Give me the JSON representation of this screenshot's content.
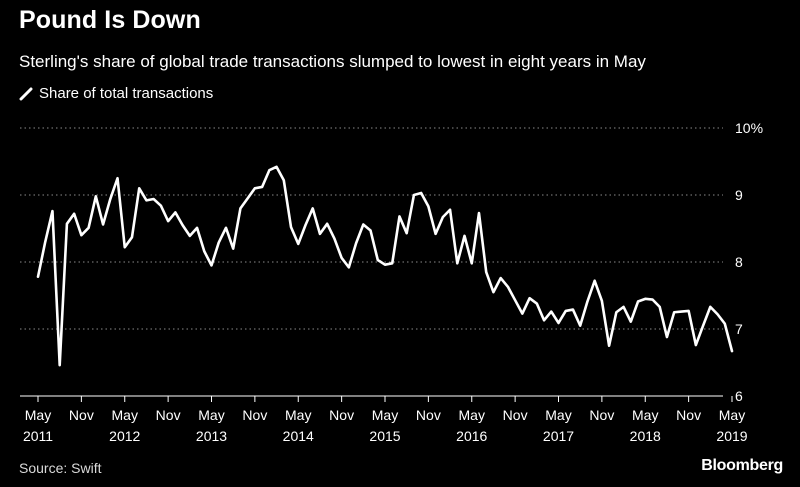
{
  "header": {
    "title": "Pound Is Down",
    "subtitle": "Sterling's share of global trade transactions slumped to lowest in eight years in May"
  },
  "legend": {
    "label": "Share of total transactions"
  },
  "footer": {
    "source": "Source: Swift",
    "brand": "Bloomberg"
  },
  "colors": {
    "background": "#000000",
    "line": "#ffffff",
    "grid": "#8a8a8a",
    "text": "#ffffff"
  },
  "chart_data": {
    "type": "line",
    "title": "Pound Is Down",
    "ylabel": "Share of total transactions",
    "ylim": [
      6,
      10
    ],
    "yticks": [
      6,
      7,
      8,
      9,
      10
    ],
    "ytick_labels": [
      "6",
      "7",
      "8",
      "9",
      "10%"
    ],
    "xticks": [
      {
        "index": 0,
        "month": "May",
        "year": "2011"
      },
      {
        "index": 6,
        "month": "Nov",
        "year": ""
      },
      {
        "index": 12,
        "month": "May",
        "year": "2012"
      },
      {
        "index": 18,
        "month": "Nov",
        "year": ""
      },
      {
        "index": 24,
        "month": "May",
        "year": "2013"
      },
      {
        "index": 30,
        "month": "Nov",
        "year": ""
      },
      {
        "index": 36,
        "month": "May",
        "year": "2014"
      },
      {
        "index": 42,
        "month": "Nov",
        "year": ""
      },
      {
        "index": 48,
        "month": "May",
        "year": "2015"
      },
      {
        "index": 54,
        "month": "Nov",
        "year": ""
      },
      {
        "index": 60,
        "month": "May",
        "year": "2016"
      },
      {
        "index": 66,
        "month": "Nov",
        "year": ""
      },
      {
        "index": 72,
        "month": "May",
        "year": "2017"
      },
      {
        "index": 78,
        "month": "Nov",
        "year": ""
      },
      {
        "index": 84,
        "month": "May",
        "year": "2018"
      },
      {
        "index": 90,
        "month": "Nov",
        "year": ""
      },
      {
        "index": 96,
        "month": "May",
        "year": "2019"
      }
    ],
    "x_start": "May 2011",
    "x_end": "May 2019",
    "series": [
      {
        "name": "Share of total transactions",
        "values": [
          7.78,
          8.3,
          8.76,
          6.46,
          8.57,
          8.72,
          8.4,
          8.51,
          8.98,
          8.56,
          8.94,
          9.25,
          8.22,
          8.37,
          9.1,
          8.92,
          8.94,
          8.84,
          8.61,
          8.74,
          8.55,
          8.39,
          8.51,
          8.16,
          7.95,
          8.29,
          8.51,
          8.2,
          8.8,
          8.95,
          9.1,
          9.12,
          9.37,
          9.42,
          9.22,
          8.52,
          8.27,
          8.55,
          8.8,
          8.42,
          8.57,
          8.35,
          8.06,
          7.92,
          8.28,
          8.56,
          8.47,
          8.03,
          7.96,
          7.98,
          8.68,
          8.43,
          9.0,
          9.03,
          8.83,
          8.42,
          8.67,
          8.78,
          7.98,
          8.39,
          7.98,
          8.73,
          7.85,
          7.55,
          7.76,
          7.63,
          7.43,
          7.23,
          7.46,
          7.38,
          7.13,
          7.26,
          7.09,
          7.27,
          7.29,
          7.05,
          7.41,
          7.72,
          7.42,
          6.75,
          7.25,
          7.33,
          7.11,
          7.41,
          7.45,
          7.44,
          7.33,
          6.88,
          7.25,
          7.26,
          7.27,
          6.76,
          7.05,
          7.33,
          7.22,
          7.08,
          6.67
        ]
      }
    ]
  }
}
